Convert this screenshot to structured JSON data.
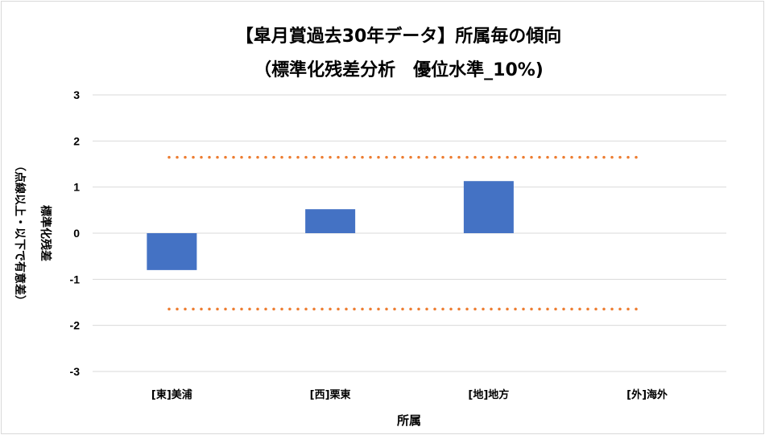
{
  "chart_data": {
    "type": "bar",
    "title": "【皐月賞過去30年データ】所属毎の傾向",
    "subtitle": "（標準化残差分析　優位水準_10%)",
    "xlabel": "所属",
    "ylabel_line1": "標準化残差",
    "ylabel_line2": "（点線以上・以下で有意差）",
    "categories": [
      "[東]美浦",
      "[西]栗東",
      "[地]地方",
      "[外]海外"
    ],
    "values": [
      -0.8,
      0.52,
      1.13,
      0
    ],
    "ylim": [
      -3,
      3
    ],
    "yticks": [
      3,
      2,
      1,
      0,
      -1,
      -2,
      -3
    ],
    "significance_threshold": 1.645,
    "bar_color": "#4472c4",
    "threshold_color": "#ed7d31",
    "grid_color": "#d9d9d9",
    "grid": true,
    "legend": "none"
  }
}
